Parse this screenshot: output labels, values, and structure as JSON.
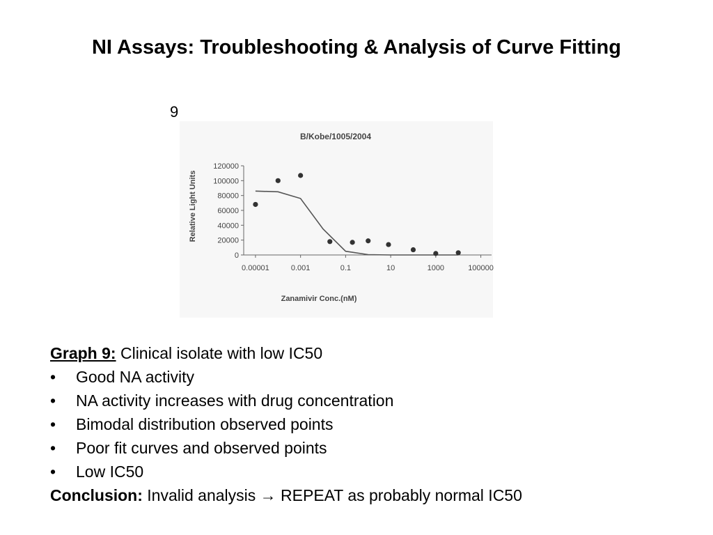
{
  "slide": {
    "title": "NI Assays: Troubleshooting & Analysis of Curve Fitting"
  },
  "figure": {
    "number": "9"
  },
  "chart_data": {
    "type": "scatter",
    "title": "B/Kobe/1005/2004",
    "xlabel": "Zanamivir Conc.(nM)",
    "ylabel": "Relative Light Units",
    "x_scale": "log",
    "xlim": [
      3e-06,
      300000
    ],
    "ylim": [
      0,
      120000
    ],
    "x_ticks": [
      1e-05,
      0.001,
      0.1,
      10,
      1000,
      100000
    ],
    "x_tick_labels": [
      "0.00001",
      "0.001",
      "0.1",
      "10",
      "1000",
      "100000"
    ],
    "y_ticks": [
      0,
      20000,
      40000,
      60000,
      80000,
      100000,
      120000
    ],
    "y_tick_labels": [
      "0",
      "20000",
      "40000",
      "60000",
      "80000",
      "100000",
      "120000"
    ],
    "grid": false,
    "points": [
      {
        "x": 1e-05,
        "y": 68000
      },
      {
        "x": 0.0001,
        "y": 100000
      },
      {
        "x": 0.001,
        "y": 107000
      },
      {
        "x": 0.02,
        "y": 18000
      },
      {
        "x": 0.2,
        "y": 17000
      },
      {
        "x": 1,
        "y": 19000
      },
      {
        "x": 8,
        "y": 14000
      },
      {
        "x": 100,
        "y": 7000
      },
      {
        "x": 1000,
        "y": 2000
      },
      {
        "x": 10000,
        "y": 3000
      }
    ],
    "fit_curve": [
      {
        "x": 1e-05,
        "y": 86000
      },
      {
        "x": 0.0001,
        "y": 85000
      },
      {
        "x": 0.001,
        "y": 76000
      },
      {
        "x": 0.01,
        "y": 35000
      },
      {
        "x": 0.1,
        "y": 5000
      },
      {
        "x": 1,
        "y": 500
      },
      {
        "x": 10,
        "y": 0
      },
      {
        "x": 100,
        "y": 0
      },
      {
        "x": 10000,
        "y": 0
      }
    ],
    "colors": {
      "points": "#333333",
      "curve": "#555555",
      "axis": "#666666",
      "text": "#444444"
    }
  },
  "notes": {
    "heading_label": "Graph 9:",
    "heading_text": " Clinical isolate with low IC50",
    "bullet_char": "•",
    "bullets": [
      "Good NA activity",
      "NA activity increases with drug concentration",
      "Bimodal distribution observed points",
      "Poor fit curves and observed points",
      "Low IC50"
    ],
    "conclusion_label": "Conclusion:",
    "conclusion_text": " Invalid analysis → REPEAT as probably normal IC50"
  }
}
